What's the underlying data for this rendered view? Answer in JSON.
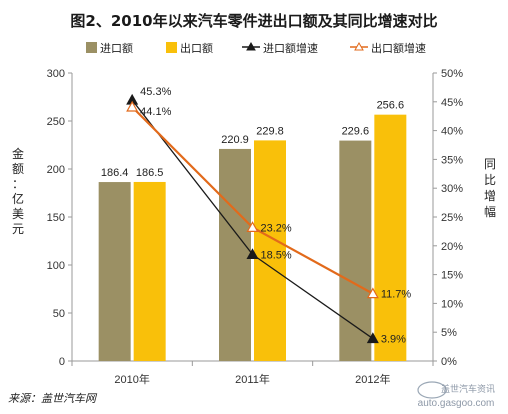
{
  "chart_data": {
    "type": "bar",
    "title": "图2、2010年以来汽车零件进出口额及其同比增速对比",
    "categories": [
      "2010年",
      "2011年",
      "2012年"
    ],
    "y_left": {
      "label": "金额：亿美元",
      "ylim": [
        0,
        300
      ],
      "ticks": [
        "0",
        "50",
        "100",
        "150",
        "200",
        "250",
        "300"
      ]
    },
    "y_right": {
      "label": "同比增幅",
      "ylim": [
        0,
        50
      ],
      "ticks": [
        "0%",
        "5%",
        "10%",
        "15%",
        "20%",
        "25%",
        "30%",
        "35%",
        "40%",
        "45%",
        "50%"
      ]
    },
    "series": [
      {
        "name": "进口额",
        "type": "bar",
        "axis": "left",
        "values": [
          186.4,
          220.9,
          229.6
        ],
        "labels": [
          "186.4",
          "220.9",
          "229.6"
        ],
        "color": "#9b9064"
      },
      {
        "name": "出口额",
        "type": "bar",
        "axis": "left",
        "values": [
          186.5,
          229.8,
          256.6
        ],
        "labels": [
          "186.5",
          "229.8",
          "256.6"
        ],
        "color": "#f9c00a"
      },
      {
        "name": "进口额增速",
        "type": "line",
        "axis": "right",
        "values": [
          45.3,
          18.5,
          3.9
        ],
        "labels": [
          "45.3%",
          "18.5%",
          "3.9%"
        ],
        "color": "#1a1a1a",
        "marker": "filled-triangle"
      },
      {
        "name": "出口额增速",
        "type": "line",
        "axis": "right",
        "values": [
          44.1,
          23.2,
          11.7
        ],
        "labels": [
          "44.1%",
          "23.2%",
          "11.7%"
        ],
        "color": "#e26a1b",
        "marker": "hollow-triangle"
      }
    ],
    "grid": false,
    "legend_position": "top"
  },
  "source": "来源：盖世汽车网",
  "watermark": {
    "line1": "盖世汽车资讯",
    "line2": "auto.gasgoo.com",
    "logo": "gasgoo"
  }
}
